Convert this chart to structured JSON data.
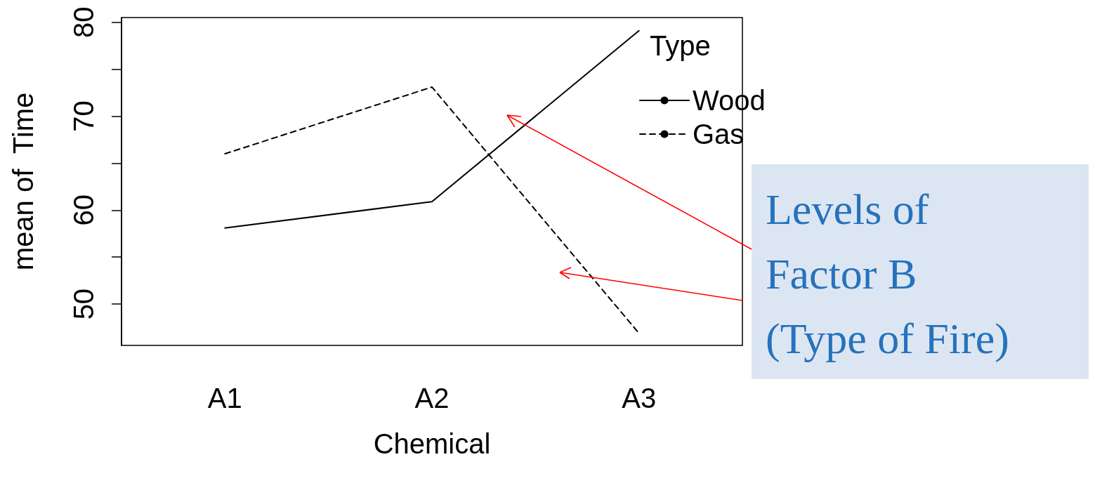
{
  "chart_data": {
    "type": "line",
    "xlabel": "Chemical",
    "ylabel": "mean of  Time",
    "legend_title": "Type",
    "categories": [
      "A1",
      "A2",
      "A3"
    ],
    "series": [
      {
        "name": "Wood",
        "color": "#000000",
        "line_style": "solid",
        "values": [
          58.1,
          60.9,
          79.1
        ]
      },
      {
        "name": "Gas",
        "color": "#000000",
        "line_style": "dashed",
        "values": [
          66.0,
          73.1,
          46.9
        ]
      }
    ],
    "ylim": [
      45.6,
      80.5
    ],
    "yticks": [
      50,
      {
        "value": 55,
        "label": null
      },
      60,
      {
        "value": 65,
        "label": null
      },
      70,
      {
        "value": 75,
        "label": null
      },
      80
    ],
    "grid": false,
    "legend": "top right",
    "marker": "none",
    "annotations": [
      "Levels of\nFactor B\n(Type of Fire)"
    ]
  }
}
